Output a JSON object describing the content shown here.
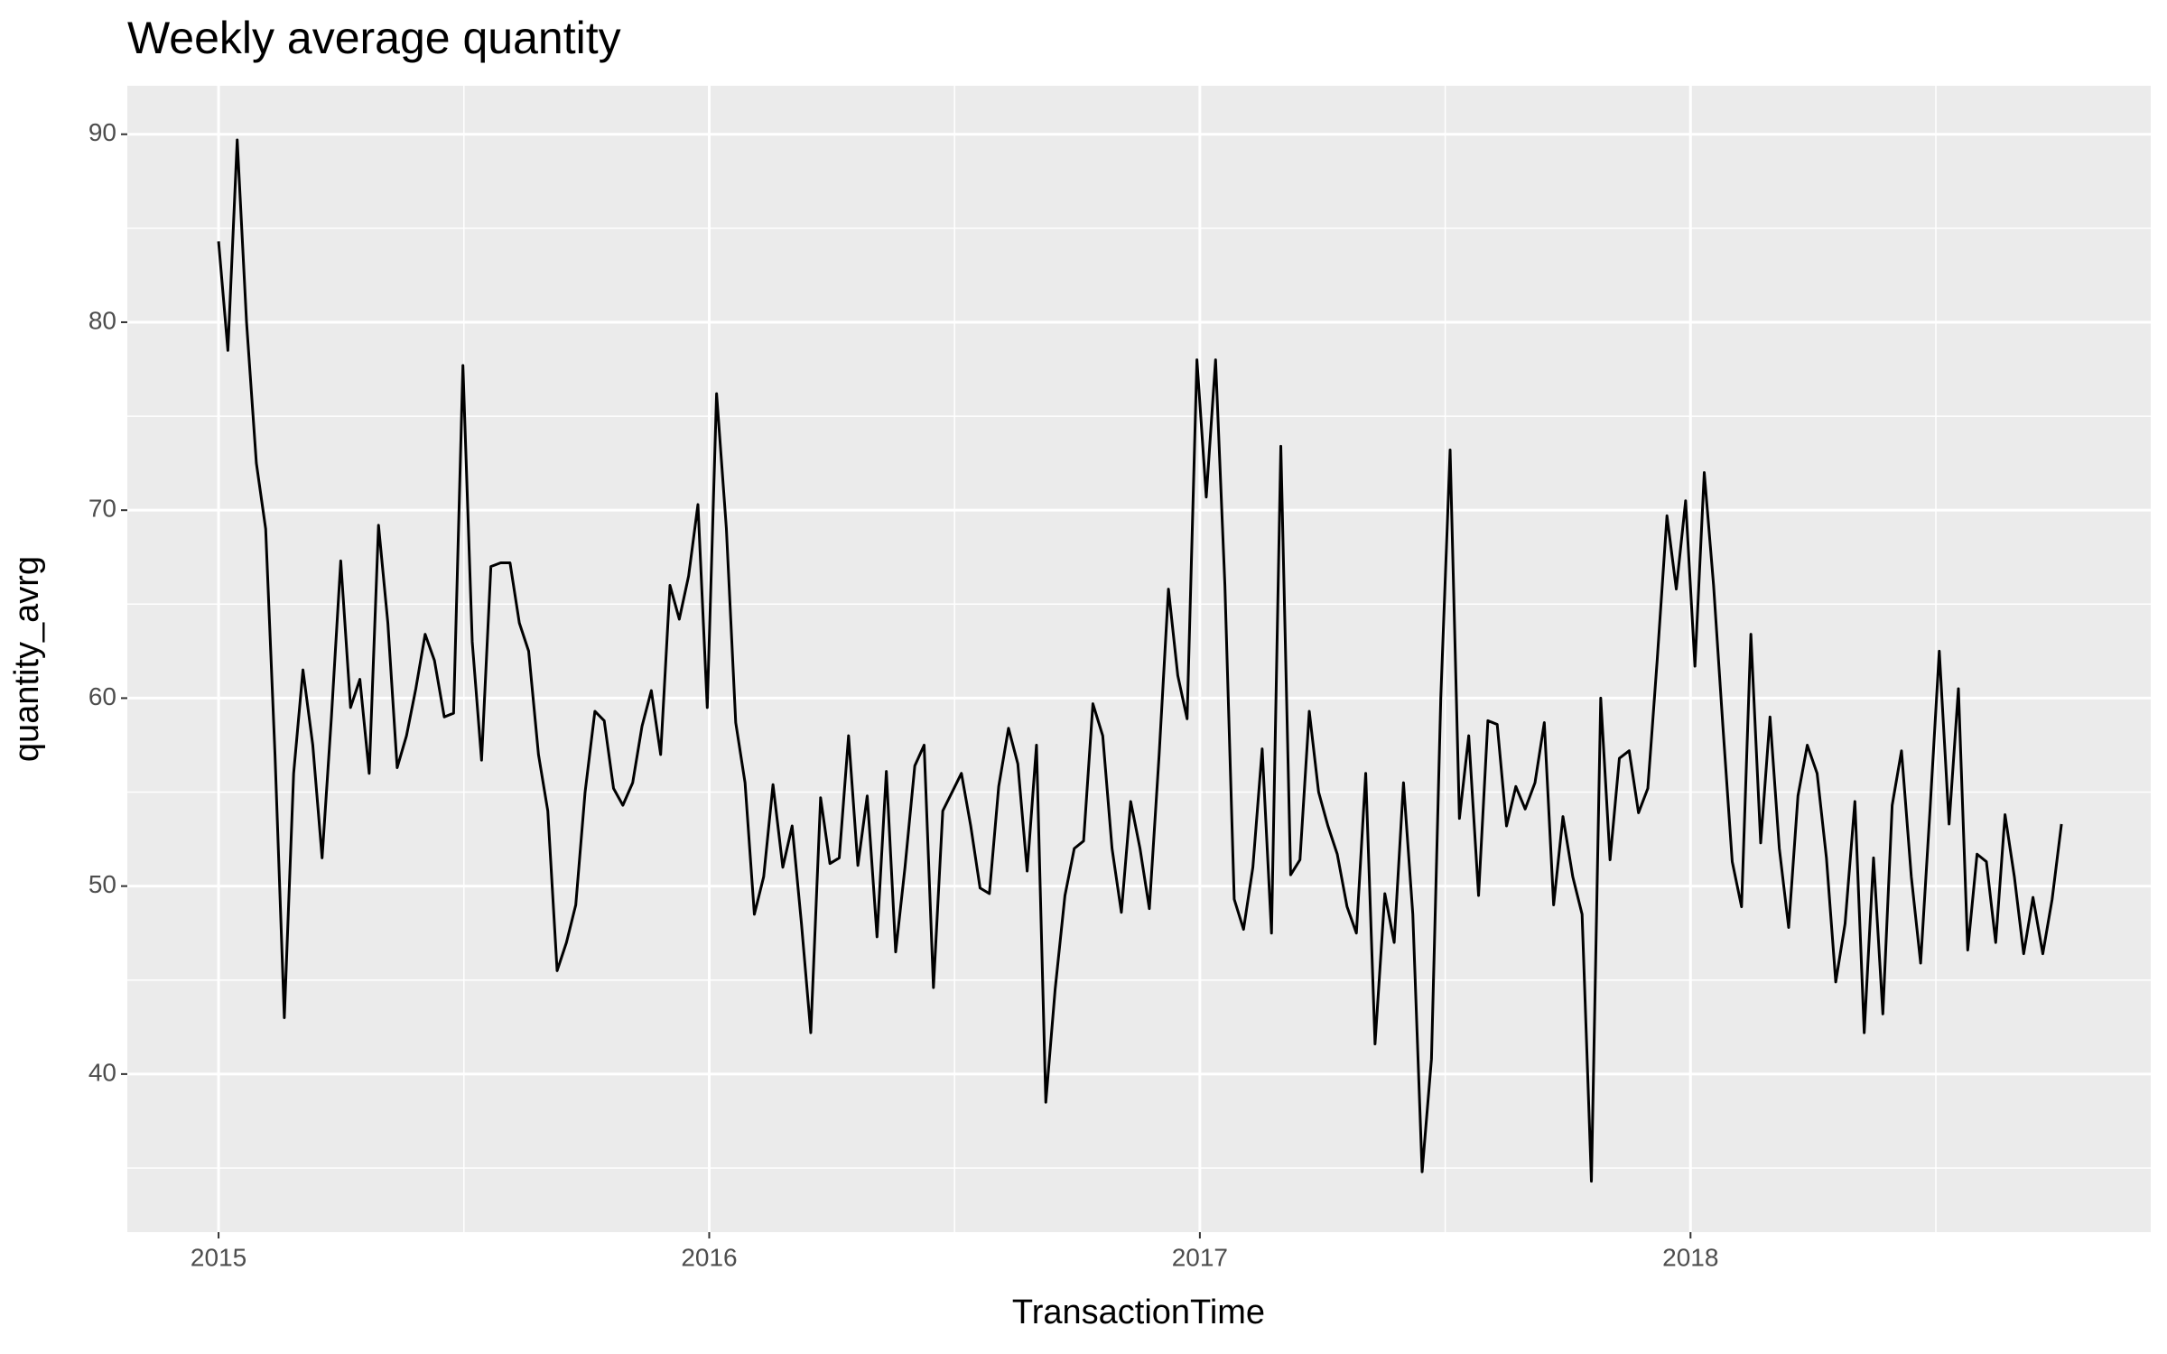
{
  "chart_data": {
    "type": "line",
    "title": "Weekly average quantity",
    "x_label": "TransactionTime",
    "y_label": "quantity_avrg",
    "x": [
      2015,
      2015.019,
      2015.038,
      2015.057,
      2015.077,
      2015.096,
      2015.115,
      2015.134,
      2015.153,
      2015.172,
      2015.192,
      2015.211,
      2015.23,
      2015.249,
      2015.269,
      2015.288,
      2015.307,
      2015.326,
      2015.345,
      2015.364,
      2015.383,
      2015.402,
      2015.421,
      2015.44,
      2015.46,
      2015.479,
      2015.498,
      2015.517,
      2015.536,
      2015.555,
      2015.575,
      2015.594,
      2015.613,
      2015.632,
      2015.652,
      2015.671,
      2015.69,
      2015.709,
      2015.728,
      2015.747,
      2015.767,
      2015.786,
      2015.805,
      2015.824,
      2015.844,
      2015.863,
      2015.882,
      2015.901,
      2015.92,
      2015.939,
      2015.958,
      2015.977,
      2015.996,
      2016.015,
      2016.035,
      2016.054,
      2016.073,
      2016.092,
      2016.111,
      2016.13,
      2016.15,
      2016.169,
      2016.188,
      2016.207,
      2016.227,
      2016.246,
      2016.265,
      2016.284,
      2016.303,
      2016.322,
      2016.342,
      2016.361,
      2016.38,
      2016.399,
      2016.419,
      2016.438,
      2016.457,
      2016.476,
      2016.495,
      2016.514,
      2016.533,
      2016.552,
      2016.571,
      2016.59,
      2016.61,
      2016.629,
      2016.648,
      2016.667,
      2016.686,
      2016.705,
      2016.725,
      2016.744,
      2016.763,
      2016.782,
      2016.802,
      2016.821,
      2016.84,
      2016.859,
      2016.878,
      2016.897,
      2016.917,
      2016.936,
      2016.955,
      2016.974,
      2016.994,
      2017.013,
      2017.032,
      2017.051,
      2017.07,
      2017.089,
      2017.108,
      2017.127,
      2017.146,
      2017.165,
      2017.185,
      2017.204,
      2017.223,
      2017.242,
      2017.261,
      2017.28,
      2017.3,
      2017.319,
      2017.338,
      2017.357,
      2017.377,
      2017.396,
      2017.415,
      2017.434,
      2017.453,
      2017.472,
      2017.491,
      2017.51,
      2017.529,
      2017.548,
      2017.568,
      2017.587,
      2017.606,
      2017.625,
      2017.644,
      2017.663,
      2017.683,
      2017.702,
      2017.721,
      2017.74,
      2017.76,
      2017.779,
      2017.798,
      2017.817,
      2017.836,
      2017.855,
      2017.875,
      2017.894,
      2017.913,
      2017.932,
      2017.952,
      2017.971,
      2017.99,
      2018.009,
      2018.028,
      2018.047,
      2018.066,
      2018.085,
      2018.104,
      2018.123,
      2018.143,
      2018.162,
      2018.181,
      2018.2,
      2018.219,
      2018.238,
      2018.258,
      2018.277,
      2018.296,
      2018.315,
      2018.335,
      2018.354,
      2018.373,
      2018.392,
      2018.411,
      2018.43,
      2018.45,
      2018.469,
      2018.488,
      2018.507,
      2018.527,
      2018.546,
      2018.565,
      2018.584,
      2018.603,
      2018.622,
      2018.641,
      2018.66,
      2018.679,
      2018.698,
      2018.718,
      2018.737,
      2018.756
    ],
    "series": [
      {
        "color": "#000000",
        "values": [
          84.3,
          78.5,
          89.7,
          80,
          72.5,
          69,
          57,
          43,
          56,
          61.5,
          57.5,
          51.5,
          59,
          67.3,
          59.5,
          61,
          56,
          69.2,
          64,
          56.3,
          58,
          60.5,
          63.4,
          62,
          59,
          59.2,
          77.7,
          63,
          56.7,
          67,
          67.2,
          67.2,
          64,
          62.5,
          57,
          54,
          45.5,
          47,
          49,
          55,
          59.3,
          58.8,
          55.2,
          54.3,
          55.5,
          58.5,
          60.4,
          57,
          66,
          64.2,
          66.5,
          70.3,
          59.5,
          76.2,
          69,
          58.7,
          55.5,
          48.5,
          50.5,
          55.4,
          51,
          53.2,
          48,
          42.2,
          54.7,
          51.2,
          51.5,
          58,
          51.1,
          54.8,
          47.3,
          56.1,
          46.5,
          51,
          56.4,
          57.5,
          44.6,
          54,
          55,
          56,
          53.2,
          49.9,
          49.6,
          55.3,
          58.4,
          56.5,
          50.8,
          57.5,
          38.5,
          44.5,
          49.5,
          52,
          52.4,
          59.7,
          58,
          52,
          48.6,
          54.5,
          52,
          48.8,
          57,
          65.8,
          61.2,
          58.9,
          78,
          70.7,
          78,
          66,
          49.3,
          47.7,
          51,
          57.3,
          47.5,
          73.4,
          50.6,
          51.4,
          59.3,
          55,
          53.2,
          51.7,
          48.9,
          47.5,
          56,
          41.6,
          49.6,
          47,
          55.5,
          48.5,
          34.8,
          40.8,
          60,
          73.2,
          53.6,
          58,
          49.5,
          58.8,
          58.6,
          53.2,
          55.3,
          54.1,
          55.5,
          58.7,
          49,
          53.7,
          50.5,
          48.5,
          34.3,
          60,
          51.4,
          56.8,
          57.2,
          53.9,
          55.2,
          62,
          69.7,
          65.8,
          70.5,
          61.7,
          72,
          66,
          58.5,
          51.3,
          48.9,
          63.4,
          52.3,
          59,
          52,
          47.8,
          54.8,
          57.5,
          56,
          51.5,
          44.9,
          48,
          54.5,
          42.2,
          51.5,
          43.2,
          54.3,
          57.2,
          50.5,
          45.9,
          54,
          62.5,
          53.3,
          60.5,
          46.6,
          51.7,
          51.3,
          47,
          53.8,
          50.5,
          46.4,
          49.4,
          46.4,
          49.3,
          53.3
        ]
      }
    ],
    "xlim": [
      2014.814,
      2018.938
    ],
    "xticks": [
      2015,
      2016,
      2017,
      2018
    ],
    "x_minor_ticks": [
      2015.5,
      2016.5,
      2017.5,
      2018.5
    ],
    "ylim": [
      31.59,
      92.58
    ],
    "yticks": [
      40,
      50,
      60,
      70,
      80,
      90
    ],
    "y_minor_ticks": [
      35,
      45,
      55,
      65,
      75,
      85
    ],
    "grid": true,
    "background": "#ebebeb"
  }
}
